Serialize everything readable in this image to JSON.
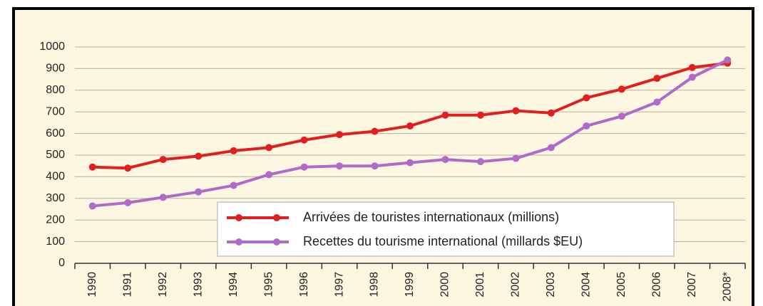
{
  "chart_data": {
    "type": "line",
    "categories": [
      "1990",
      "1991",
      "1992",
      "1993",
      "1994",
      "1995",
      "1996",
      "1997",
      "1998",
      "1999",
      "2000",
      "2001",
      "2002",
      "2003",
      "2004",
      "2005",
      "2006",
      "2007",
      "2008*"
    ],
    "series": [
      {
        "name": "Arrivées de touristes internationaux (millions)",
        "color": "#e02020",
        "values": [
          445,
          440,
          480,
          495,
          520,
          535,
          570,
          595,
          610,
          635,
          685,
          685,
          705,
          695,
          765,
          805,
          855,
          905,
          925
        ]
      },
      {
        "name": "Recettes du tourisme international (millards $EU)",
        "color": "#b06ac8",
        "values": [
          265,
          280,
          305,
          330,
          360,
          410,
          445,
          450,
          450,
          465,
          480,
          470,
          485,
          535,
          635,
          680,
          745,
          860,
          940
        ]
      }
    ],
    "ylim": [
      0,
      1000
    ],
    "yticks": [
      0,
      100,
      200,
      300,
      400,
      500,
      600,
      700,
      800,
      900,
      1000
    ],
    "grid": true
  }
}
